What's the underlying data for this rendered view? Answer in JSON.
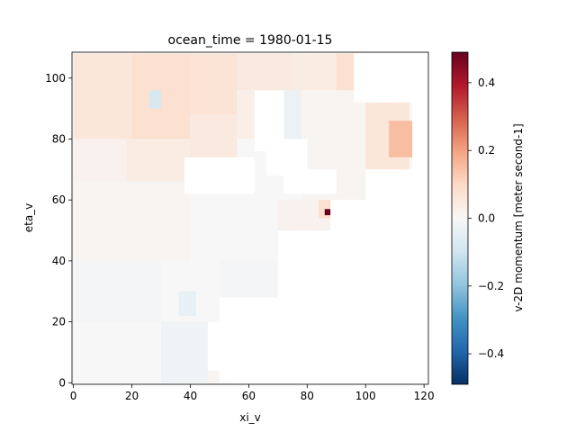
{
  "chart_data": {
    "type": "heatmap",
    "title": "ocean_time = 1980-01-15",
    "xlabel": "xi_v",
    "ylabel": "eta_v",
    "xlim": [
      -0.5,
      121.5
    ],
    "ylim": [
      -0.5,
      108.5
    ],
    "x_ticks": [
      0,
      20,
      40,
      60,
      80,
      100,
      120
    ],
    "y_ticks": [
      0,
      20,
      40,
      60,
      80,
      100
    ],
    "colorbar": {
      "label": "v-2D momentum [meter second-1]",
      "colormap": "RdBu_r",
      "vmin": -0.49,
      "vmax": 0.49,
      "ticks": [
        -0.4,
        -0.2,
        0.0,
        0.2,
        0.4
      ],
      "tick_labels": [
        "−0.4",
        "−0.2",
        "0.0",
        "0.2",
        "0.4"
      ]
    },
    "grid": false,
    "land_mask_color": "#ffffff",
    "colors": {
      "negative_extreme": "#053061",
      "negative": "#4393c3",
      "neutral": "#f7f7f7",
      "positive": "#f4a582",
      "positive_extreme": "#67001f"
    },
    "field_cells": [
      {
        "x": [
          0,
          20
        ],
        "y": [
          80,
          108
        ],
        "v": 0.06
      },
      {
        "x": [
          20,
          40
        ],
        "y": [
          80,
          108
        ],
        "v": 0.08
      },
      {
        "x": [
          26,
          30
        ],
        "y": [
          90,
          96
        ],
        "v": -0.08
      },
      {
        "x": [
          40,
          56
        ],
        "y": [
          88,
          108
        ],
        "v": 0.07
      },
      {
        "x": [
          56,
          75
        ],
        "y": [
          96,
          108
        ],
        "v": 0.05
      },
      {
        "x": [
          75,
          90
        ],
        "y": [
          96,
          108
        ],
        "v": 0.04
      },
      {
        "x": [
          90,
          96
        ],
        "y": [
          96,
          108
        ],
        "v": 0.08
      },
      {
        "x": [
          0,
          18
        ],
        "y": [
          60,
          80
        ],
        "v": 0.02
      },
      {
        "x": [
          18,
          40
        ],
        "y": [
          66,
          80
        ],
        "v": 0.04
      },
      {
        "x": [
          40,
          56
        ],
        "y": [
          72,
          88
        ],
        "v": 0.05
      },
      {
        "x": [
          56,
          62
        ],
        "y": [
          80,
          96
        ],
        "v": 0.03
      },
      {
        "x": [
          72,
          78
        ],
        "y": [
          80,
          96
        ],
        "v": -0.03
      },
      {
        "x": [
          78,
          100
        ],
        "y": [
          60,
          96
        ],
        "v": 0.01
      },
      {
        "x": [
          100,
          115
        ],
        "y": [
          70,
          92
        ],
        "v": 0.06
      },
      {
        "x": [
          108,
          116
        ],
        "y": [
          74,
          86
        ],
        "v": 0.15
      },
      {
        "x": [
          0,
          40
        ],
        "y": [
          40,
          66
        ],
        "v": 0.01
      },
      {
        "x": [
          40,
          70
        ],
        "y": [
          40,
          60
        ],
        "v": 0.0
      },
      {
        "x": [
          70,
          88
        ],
        "y": [
          50,
          60
        ],
        "v": 0.02
      },
      {
        "x": [
          84,
          90
        ],
        "y": [
          54,
          60
        ],
        "v": 0.08
      },
      {
        "x": [
          0,
          30
        ],
        "y": [
          20,
          40
        ],
        "v": -0.01
      },
      {
        "x": [
          30,
          50
        ],
        "y": [
          20,
          40
        ],
        "v": 0.0
      },
      {
        "x": [
          50,
          75
        ],
        "y": [
          28,
          40
        ],
        "v": -0.01
      },
      {
        "x": [
          0,
          30
        ],
        "y": [
          0,
          20
        ],
        "v": 0.0
      },
      {
        "x": [
          30,
          46
        ],
        "y": [
          0,
          20
        ],
        "v": -0.02
      },
      {
        "x": [
          46,
          56
        ],
        "y": [
          0,
          4
        ],
        "v": 0.01
      },
      {
        "x": [
          36,
          42
        ],
        "y": [
          22,
          30
        ],
        "v": -0.04
      },
      {
        "x": [
          86,
          88
        ],
        "y": [
          55,
          57
        ],
        "v": 0.49
      }
    ],
    "land_cells": [
      {
        "x": [
          62,
          72
        ],
        "y": [
          76,
          96
        ]
      },
      {
        "x": [
          66,
          80
        ],
        "y": [
          68,
          80
        ]
      },
      {
        "x": [
          72,
          90
        ],
        "y": [
          62,
          70
        ]
      },
      {
        "x": [
          38,
          62
        ],
        "y": [
          62,
          74
        ]
      },
      {
        "x": [
          88,
          122
        ],
        "y": [
          0,
          60
        ]
      },
      {
        "x": [
          70,
          88
        ],
        "y": [
          0,
          50
        ]
      },
      {
        "x": [
          50,
          70
        ],
        "y": [
          0,
          28
        ]
      },
      {
        "x": [
          56,
          88
        ],
        "y": [
          0,
          10
        ]
      },
      {
        "x": [
          46,
          50
        ],
        "y": [
          4,
          20
        ]
      },
      {
        "x": [
          75,
          90
        ],
        "y": [
          40,
          50
        ]
      },
      {
        "x": [
          96,
          122
        ],
        "y": [
          92,
          108
        ]
      },
      {
        "x": [
          116,
          122
        ],
        "y": [
          60,
          92
        ]
      },
      {
        "x": [
          100,
          116
        ],
        "y": [
          60,
          70
        ]
      }
    ]
  }
}
